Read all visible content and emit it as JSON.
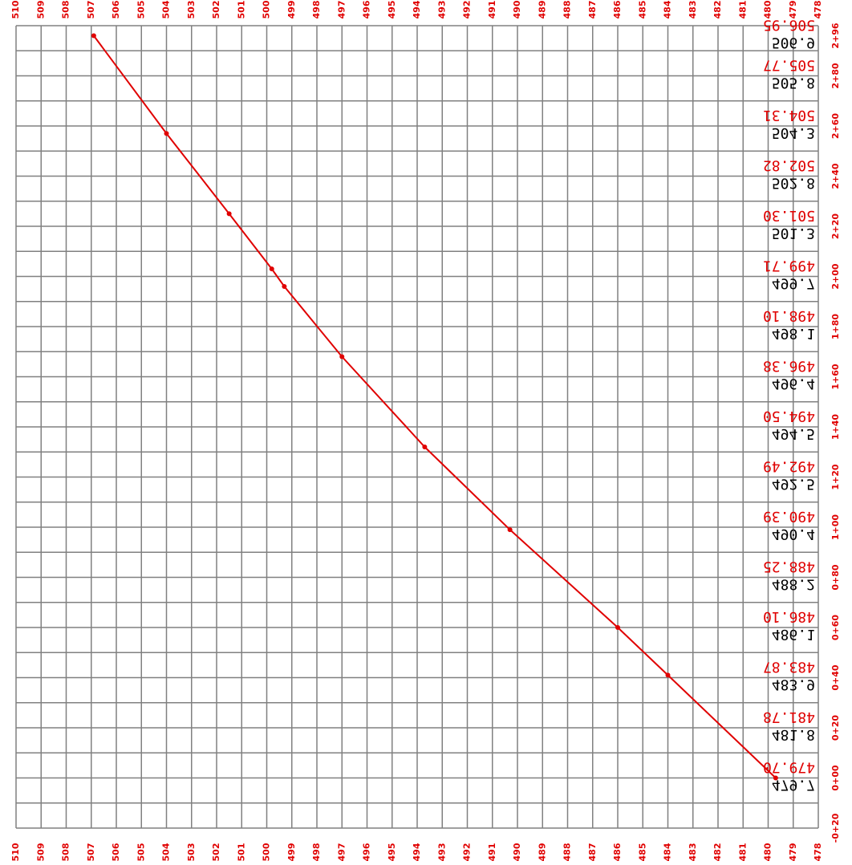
{
  "chart_data": {
    "type": "line",
    "color": "#e00000",
    "grid_color": "#808080",
    "xlim": [
      510,
      478
    ],
    "xticks": [
      510,
      509,
      508,
      507,
      506,
      505,
      504,
      503,
      502,
      501,
      500,
      499,
      498,
      497,
      496,
      495,
      494,
      493,
      492,
      491,
      490,
      489,
      488,
      487,
      486,
      485,
      484,
      483,
      482,
      481,
      480,
      479,
      478
    ],
    "ylim": [
      -20,
      300
    ],
    "yticks": [
      {
        "value": 296,
        "label": "2+96"
      },
      {
        "value": 280,
        "label": "2+80"
      },
      {
        "value": 260,
        "label": "2+60"
      },
      {
        "value": 240,
        "label": "2+40"
      },
      {
        "value": 220,
        "label": "2+20"
      },
      {
        "value": 200,
        "label": "2+00"
      },
      {
        "value": 180,
        "label": "1+80"
      },
      {
        "value": 160,
        "label": "1+60"
      },
      {
        "value": 140,
        "label": "1+40"
      },
      {
        "value": 120,
        "label": "1+20"
      },
      {
        "value": 100,
        "label": "1+00"
      },
      {
        "value": 80,
        "label": "0+80"
      },
      {
        "value": 60,
        "label": "0+60"
      },
      {
        "value": 40,
        "label": "0+40"
      },
      {
        "value": 20,
        "label": "0+20"
      },
      {
        "value": 0,
        "label": "0+00"
      },
      {
        "value": -20,
        "label": "-0+20"
      }
    ],
    "ygrid": [
      300,
      290,
      280,
      270,
      260,
      250,
      240,
      230,
      220,
      210,
      200,
      190,
      180,
      170,
      160,
      150,
      140,
      130,
      120,
      110,
      100,
      90,
      80,
      70,
      60,
      50,
      40,
      30,
      20,
      10,
      0,
      -10,
      -20
    ],
    "design_labels": [
      "506.95",
      "505.77",
      "504.31",
      "502.82",
      "501.30",
      "499.71",
      "498.10",
      "496.38",
      "494.50",
      "492.49",
      "490.39",
      "488.25",
      "486.10",
      "483.87",
      "481.78",
      "479.70",
      null
    ],
    "existing_labels": [
      "506.9",
      "505.8",
      "504.3",
      "502.8",
      "501.3",
      "499.7",
      "498.1",
      "496.4",
      "494.5",
      "492.5",
      "490.4",
      "488.2",
      "486.1",
      "483.9",
      "481.8",
      "479.7",
      null
    ],
    "grid": true,
    "series": [
      {
        "color": "#e00000",
        "x": [
          506.9,
          504.0,
          501.5,
          499.8,
          499.3,
          497.0,
          493.7,
          490.3,
          486.0,
          484.0,
          479.7
        ],
        "values": [
          296,
          257,
          225,
          203,
          196,
          168,
          132,
          99,
          60,
          41,
          0
        ]
      }
    ]
  }
}
